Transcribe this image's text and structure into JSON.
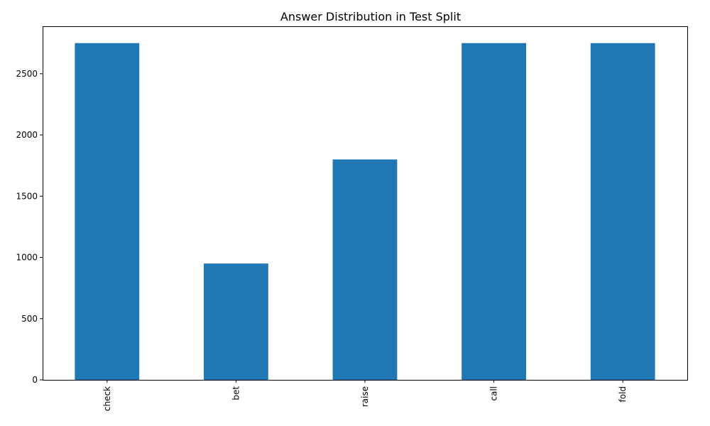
{
  "chart_data": {
    "type": "bar",
    "title": "Answer Distribution in Test Split",
    "xlabel": "",
    "ylabel": "",
    "categories": [
      "check",
      "bet",
      "raise",
      "call",
      "fold"
    ],
    "values": [
      2750,
      950,
      1800,
      2750,
      2750
    ],
    "ylim": [
      0,
      2887.5
    ],
    "yticks": [
      0,
      500,
      1000,
      1500,
      2000,
      2500
    ],
    "bar_color": "#1f77b4",
    "grid": false,
    "legend": "none",
    "xtick_rotation": "vertical"
  }
}
